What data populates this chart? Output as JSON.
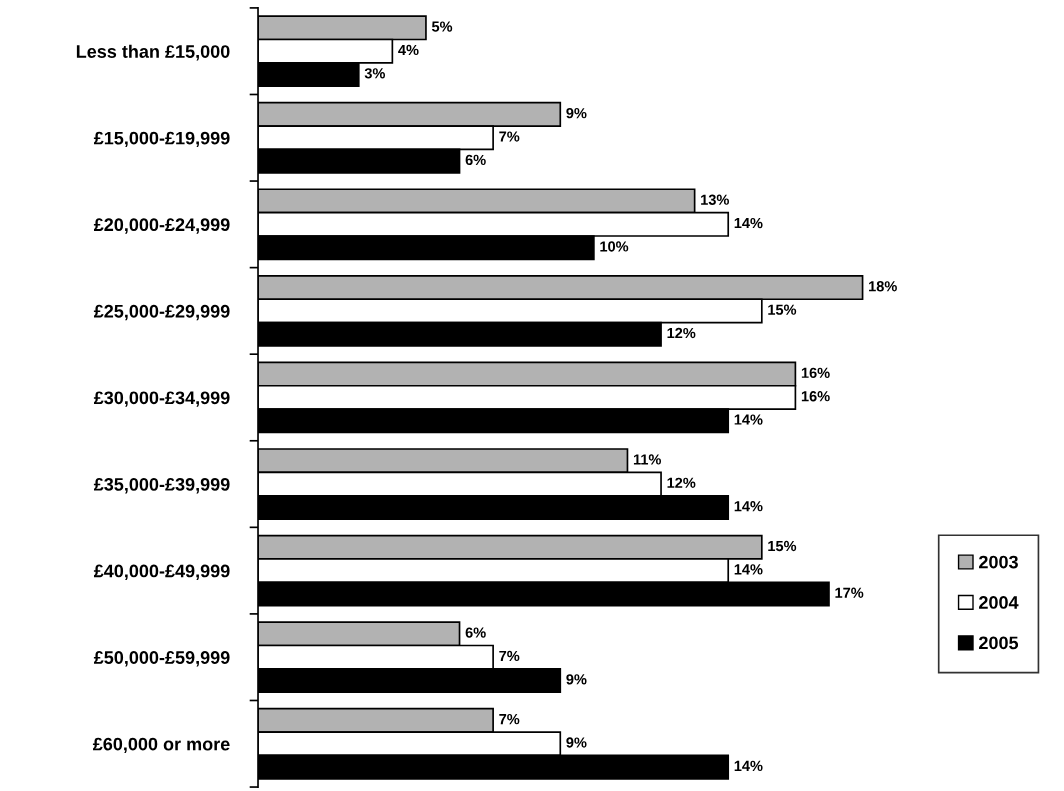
{
  "chart_data": {
    "type": "bar",
    "orientation": "horizontal",
    "categories": [
      "Less than £15,000",
      "£15,000-£19,999",
      "£20,000-£24,999",
      "£25,000-£29,999",
      "£30,000-£34,999",
      "£35,000-£39,999",
      "£40,000-£49,999",
      "£50,000-£59,999",
      "£60,000 or more"
    ],
    "series": [
      {
        "name": "2003",
        "color": "#b2b2b2",
        "values": [
          5,
          9,
          13,
          18,
          16,
          11,
          15,
          6,
          7
        ],
        "value_labels": [
          "5%",
          "9%",
          "13%",
          "18%",
          "16%",
          "11%",
          "15%",
          "6%",
          "7%"
        ]
      },
      {
        "name": "2004",
        "color": "#ffffff",
        "values": [
          4,
          7,
          14,
          15,
          16,
          12,
          14,
          7,
          9
        ],
        "value_labels": [
          "4%",
          "7%",
          "14%",
          "15%",
          "16%",
          "12%",
          "14%",
          "7%",
          "9%"
        ]
      },
      {
        "name": "2005",
        "color": "#000000",
        "values": [
          3,
          6,
          10,
          12,
          14,
          14,
          17,
          9,
          14
        ],
        "value_labels": [
          "3%",
          "6%",
          "10%",
          "12%",
          "14%",
          "14%",
          "17%",
          "9%",
          "14%"
        ]
      }
    ],
    "legend": "right",
    "grid": false,
    "tick_labels": "y"
  }
}
